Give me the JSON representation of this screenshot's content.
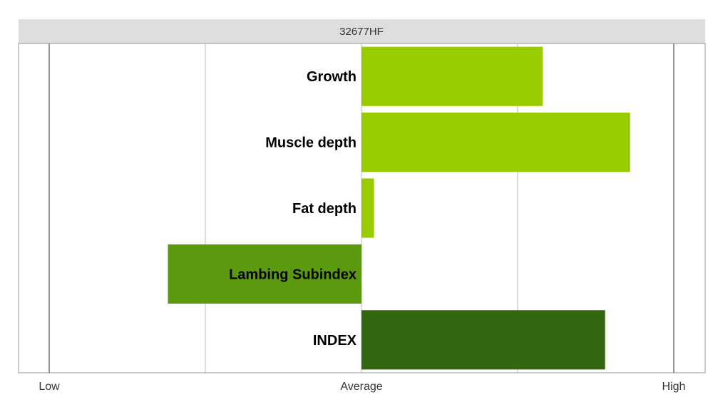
{
  "chart_data": {
    "type": "bar",
    "orientation": "horizontal",
    "title": "32677HF",
    "categories": [
      "Growth",
      "Muscle depth",
      "Fat depth",
      "Lambing Subindex",
      "INDEX"
    ],
    "values": [
      0.58,
      0.86,
      0.04,
      -0.62,
      0.78
    ],
    "colors": [
      "#99cc00",
      "#99cc00",
      "#99cc00",
      "#5b9a0e",
      "#336611"
    ],
    "xlim": [
      -1,
      1
    ],
    "tick_values": [
      -1,
      0,
      1
    ],
    "tick_labels": [
      "Low",
      "Average",
      "High"
    ],
    "gridlines": [
      -1,
      -0.5,
      0,
      0.5,
      1
    ],
    "grid": true,
    "xlabel": "",
    "ylabel": ""
  }
}
